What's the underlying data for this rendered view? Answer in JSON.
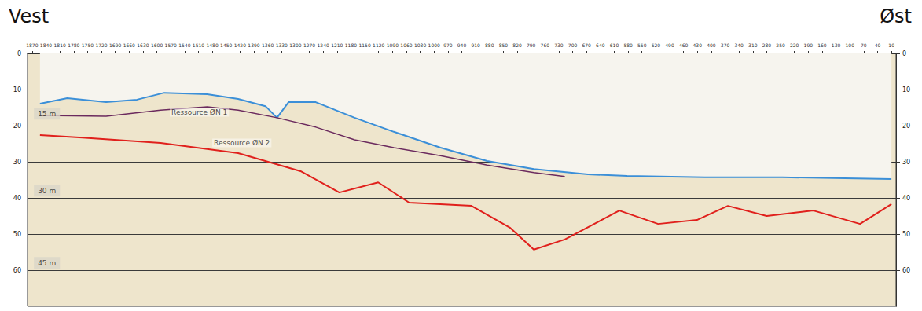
{
  "chart_data": {
    "type": "line",
    "left_label": "Vest",
    "right_label": "Øst",
    "xlim": [
      1880,
      0
    ],
    "xticks": [
      1870,
      1840,
      1810,
      1780,
      1750,
      1720,
      1690,
      1660,
      1630,
      1600,
      1570,
      1540,
      1510,
      1480,
      1450,
      1420,
      1390,
      1360,
      1330,
      1300,
      1270,
      1240,
      1210,
      1180,
      1150,
      1120,
      1090,
      1060,
      1030,
      1000,
      970,
      940,
      910,
      880,
      850,
      820,
      790,
      760,
      730,
      700,
      670,
      640,
      610,
      580,
      550,
      520,
      490,
      460,
      430,
      400,
      370,
      340,
      310,
      280,
      250,
      220,
      190,
      160,
      130,
      100,
      70,
      40,
      10
    ],
    "ylim": [
      70,
      0
    ],
    "yticks": [
      0,
      10,
      20,
      30,
      40,
      50,
      60
    ],
    "grid": true,
    "series": [
      {
        "color": "#3b8fd8",
        "x": [
          1853,
          1794,
          1710,
          1643,
          1584,
          1491,
          1424,
          1365,
          1340,
          1315,
          1256,
          1172,
          1087,
          986,
          885,
          784,
          667,
          582,
          414,
          246,
          10
        ],
        "values": [
          13.9,
          12.4,
          13.5,
          12.8,
          10.9,
          11.3,
          12.6,
          14.6,
          17.8,
          13.5,
          13.5,
          17.8,
          21.7,
          26.1,
          29.8,
          32.0,
          33.5,
          33.9,
          34.3,
          34.3,
          34.8
        ]
      },
      {
        "color": "#6b2a5e",
        "x": [
          1853,
          1710,
          1592,
          1491,
          1424,
          1340,
          1256,
          1172,
          1087,
          986,
          885,
          784,
          717
        ],
        "values": [
          17.2,
          17.4,
          15.7,
          14.8,
          15.7,
          17.8,
          20.4,
          23.9,
          26.1,
          28.3,
          30.9,
          33.0,
          34.1
        ]
      },
      {
        "color": "#e0201c",
        "x": [
          1853,
          1761,
          1592,
          1424,
          1289,
          1205,
          1121,
          1054,
          919,
          835,
          784,
          717,
          599,
          515,
          431,
          364,
          280,
          179,
          78,
          10
        ],
        "values": [
          22.6,
          23.3,
          24.8,
          27.6,
          32.6,
          38.5,
          35.7,
          41.3,
          42.2,
          48.3,
          54.3,
          51.5,
          43.5,
          47.2,
          46.1,
          42.2,
          45.0,
          43.5,
          47.2,
          41.7
        ]
      }
    ],
    "annotations": [
      {
        "text": "Ressource ØN 1",
        "x": 1508,
        "y": 16.3
      },
      {
        "text": "Ressource ØN 2",
        "x": 1416,
        "y": 24.8
      }
    ],
    "depth_labels": [
      {
        "text": "15 m",
        "x": 1838,
        "y": 16.7
      },
      {
        "text": "30 m",
        "x": 1838,
        "y": 38.0
      },
      {
        "text": "45 m",
        "x": 1838,
        "y": 58.0
      }
    ]
  }
}
